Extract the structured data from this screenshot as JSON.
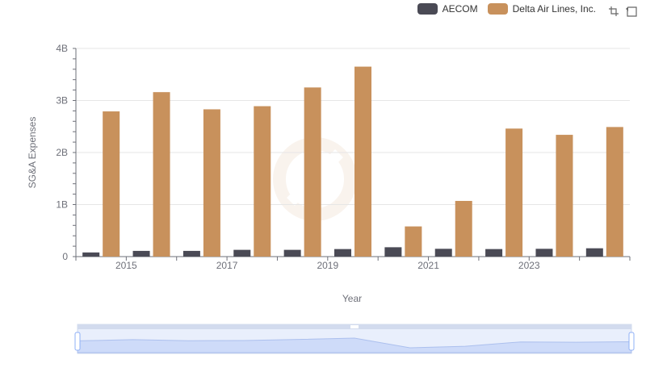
{
  "chart_data": {
    "type": "bar",
    "x": [
      "2014",
      "2015",
      "2016",
      "2017",
      "2018",
      "2019",
      "2020",
      "2021",
      "2022",
      "2023",
      "2024"
    ],
    "xtick_labels": [
      "2015",
      "2017",
      "2019",
      "2021",
      "2023"
    ],
    "xlabel": "Year",
    "ylabel": "SG&A Expenses",
    "ylim": [
      0,
      4000000000
    ],
    "yticks": [
      0,
      1000000000,
      2000000000,
      3000000000,
      4000000000
    ],
    "ytick_labels": [
      "0",
      "1B",
      "2B",
      "3B",
      "4B"
    ],
    "grid": true,
    "legend_placement": "top-right",
    "series": [
      {
        "name": "AECOM",
        "color": "#4a4a55",
        "values": [
          80000000,
          110000000,
          110000000,
          130000000,
          130000000,
          145000000,
          180000000,
          150000000,
          145000000,
          150000000,
          160000000
        ]
      },
      {
        "name": "Delta Air Lines, Inc.",
        "color": "#c8915c",
        "values": [
          2790000000,
          3160000000,
          2830000000,
          2890000000,
          3250000000,
          3650000000,
          580000000,
          1070000000,
          2460000000,
          2340000000,
          2490000000
        ]
      }
    ]
  },
  "legend": {
    "items": [
      {
        "label": "AECOM",
        "color": "#4a4a55"
      },
      {
        "label": "Delta Air Lines, Inc.",
        "color": "#c8915c"
      }
    ]
  },
  "toolbox": {
    "zoom_icon": "zoom-icon",
    "restore_icon": "restore-icon"
  },
  "data_zoom": {
    "start": 0,
    "end": 1
  }
}
